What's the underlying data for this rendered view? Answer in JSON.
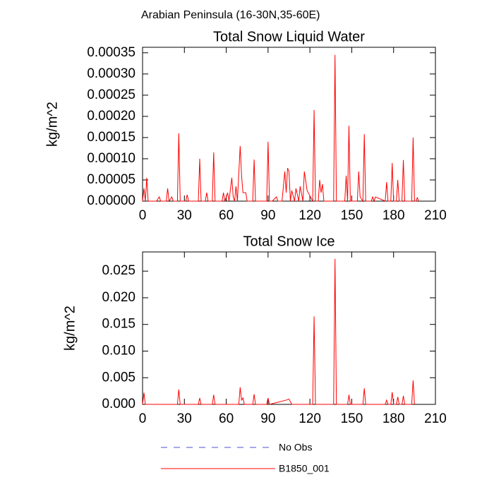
{
  "title": "Arabian Peninsula (16-30N,35-60E)",
  "legend": [
    {
      "name": "No Obs",
      "color": "#4f4fd9",
      "dash": true
    },
    {
      "name": "B1850_001",
      "color": "#ff0000",
      "dash": false
    }
  ],
  "chart_data": [
    {
      "type": "line",
      "title": "Total Snow Liquid Water",
      "y_label": "kg/m^2",
      "color": "#ff0000",
      "xlim": [
        0,
        210
      ],
      "xticks": [
        0,
        30,
        60,
        90,
        120,
        150,
        180,
        210
      ],
      "ylim": [
        0,
        0.000363
      ],
      "yticks": [
        {
          "value": 0,
          "label": "0.00000"
        },
        {
          "value": 5e-05,
          "label": "0.00005"
        },
        {
          "value": 0.0001,
          "label": "0.00010"
        },
        {
          "value": 0.00015,
          "label": "0.00015"
        },
        {
          "value": 0.0002,
          "label": "0.00020"
        },
        {
          "value": 0.00025,
          "label": "0.00025"
        },
        {
          "value": 0.0003,
          "label": "0.00030"
        },
        {
          "value": 0.00035,
          "label": "0.00035"
        }
      ],
      "x": [
        0,
        1,
        2,
        3,
        4,
        10,
        12,
        13,
        17,
        18,
        19,
        21,
        22,
        25,
        26,
        27,
        31,
        32,
        33,
        40,
        41,
        42,
        45,
        46,
        47,
        50,
        51,
        52,
        57,
        58,
        59,
        61,
        62,
        64,
        65,
        66,
        67,
        68,
        70,
        71,
        72,
        74,
        75,
        79,
        80,
        81,
        89,
        90,
        91,
        93,
        96,
        97,
        100,
        102,
        103,
        104,
        105,
        106,
        107,
        109,
        110,
        112,
        113,
        115,
        116,
        118,
        122,
        123,
        124,
        126,
        127,
        128,
        129,
        130,
        131,
        137,
        138,
        139,
        145,
        146,
        147,
        148,
        149,
        154,
        155,
        156,
        158,
        159,
        160,
        164,
        165,
        166,
        167,
        174,
        175,
        176,
        178,
        179,
        180,
        182,
        183,
        184,
        186,
        187,
        188,
        193,
        194,
        195,
        196,
        197,
        198
      ],
      "values": [
        0,
        3e-05,
        0,
        5.5e-05,
        0,
        0,
        1e-05,
        0,
        0,
        3e-05,
        0,
        1e-05,
        0,
        0,
        0.00016,
        0,
        0,
        1.5e-05,
        0,
        0,
        0.0001,
        0,
        0,
        2e-05,
        0,
        0,
        0.000115,
        0,
        0,
        2e-05,
        0,
        2e-05,
        0,
        5.5e-05,
        1e-05,
        0,
        3.5e-05,
        0,
        0.00013,
        6e-05,
        2e-05,
        2e-05,
        0,
        0,
        9.8e-05,
        0,
        0,
        0.00014,
        0,
        0,
        1e-05,
        0,
        0,
        7e-05,
        2e-05,
        7.8e-05,
        7e-05,
        0,
        2.5e-05,
        0,
        3e-05,
        0,
        3.5e-05,
        0,
        7e-05,
        2.5e-05,
        0,
        0.000215,
        0,
        0,
        5e-05,
        2e-05,
        4e-05,
        0,
        0,
        0,
        0.000345,
        0,
        0,
        6e-05,
        0,
        0.000178,
        0,
        0,
        7e-05,
        1e-05,
        0,
        0.000158,
        0,
        0,
        1e-05,
        0,
        1e-05,
        0,
        4.5e-05,
        0,
        0,
        9e-05,
        0,
        0,
        5e-05,
        0,
        0,
        9.7e-05,
        0,
        0,
        0.00015,
        0,
        0,
        8e-06,
        0
      ]
    },
    {
      "type": "line",
      "title": "Total Snow Ice",
      "y_label": "kg/m^2",
      "color": "#ff0000",
      "xlim": [
        0,
        210
      ],
      "xticks": [
        0,
        30,
        60,
        90,
        120,
        150,
        180,
        210
      ],
      "ylim": [
        0,
        0.0286
      ],
      "yticks": [
        {
          "value": 0,
          "label": "0.000"
        },
        0.005,
        {
          "value": 0.01,
          "label": "0.010"
        },
        0.015,
        {
          "value": 0.02,
          "label": "0.020"
        },
        0.025
      ],
      "x": [
        0,
        1,
        2,
        3,
        25,
        26,
        27,
        40,
        41,
        42,
        50,
        51,
        52,
        69,
        70,
        71,
        72,
        73,
        79,
        80,
        81,
        89,
        90,
        91,
        103,
        105,
        107,
        122,
        123,
        124,
        137,
        138,
        139,
        147,
        148,
        149,
        158,
        159,
        160,
        174,
        175,
        176,
        178,
        179,
        180,
        182,
        183,
        184,
        186,
        187,
        188,
        193,
        194,
        195
      ],
      "values": [
        0,
        0.0022,
        0,
        0,
        0,
        0.0028,
        0,
        0,
        0.0012,
        0,
        0,
        0.0018,
        0,
        0,
        0.0032,
        0.0008,
        0.0012,
        0,
        0,
        0.0019,
        0,
        0,
        0.0012,
        0,
        0.0008,
        0.001,
        0,
        0,
        0.0165,
        0,
        0,
        0.0273,
        0,
        0,
        0.0018,
        0,
        0,
        0.003,
        0,
        0,
        0.0008,
        0,
        0,
        0.0023,
        0,
        0,
        0.0014,
        0,
        0,
        0.0016,
        0,
        0,
        0.0045,
        0
      ]
    }
  ]
}
